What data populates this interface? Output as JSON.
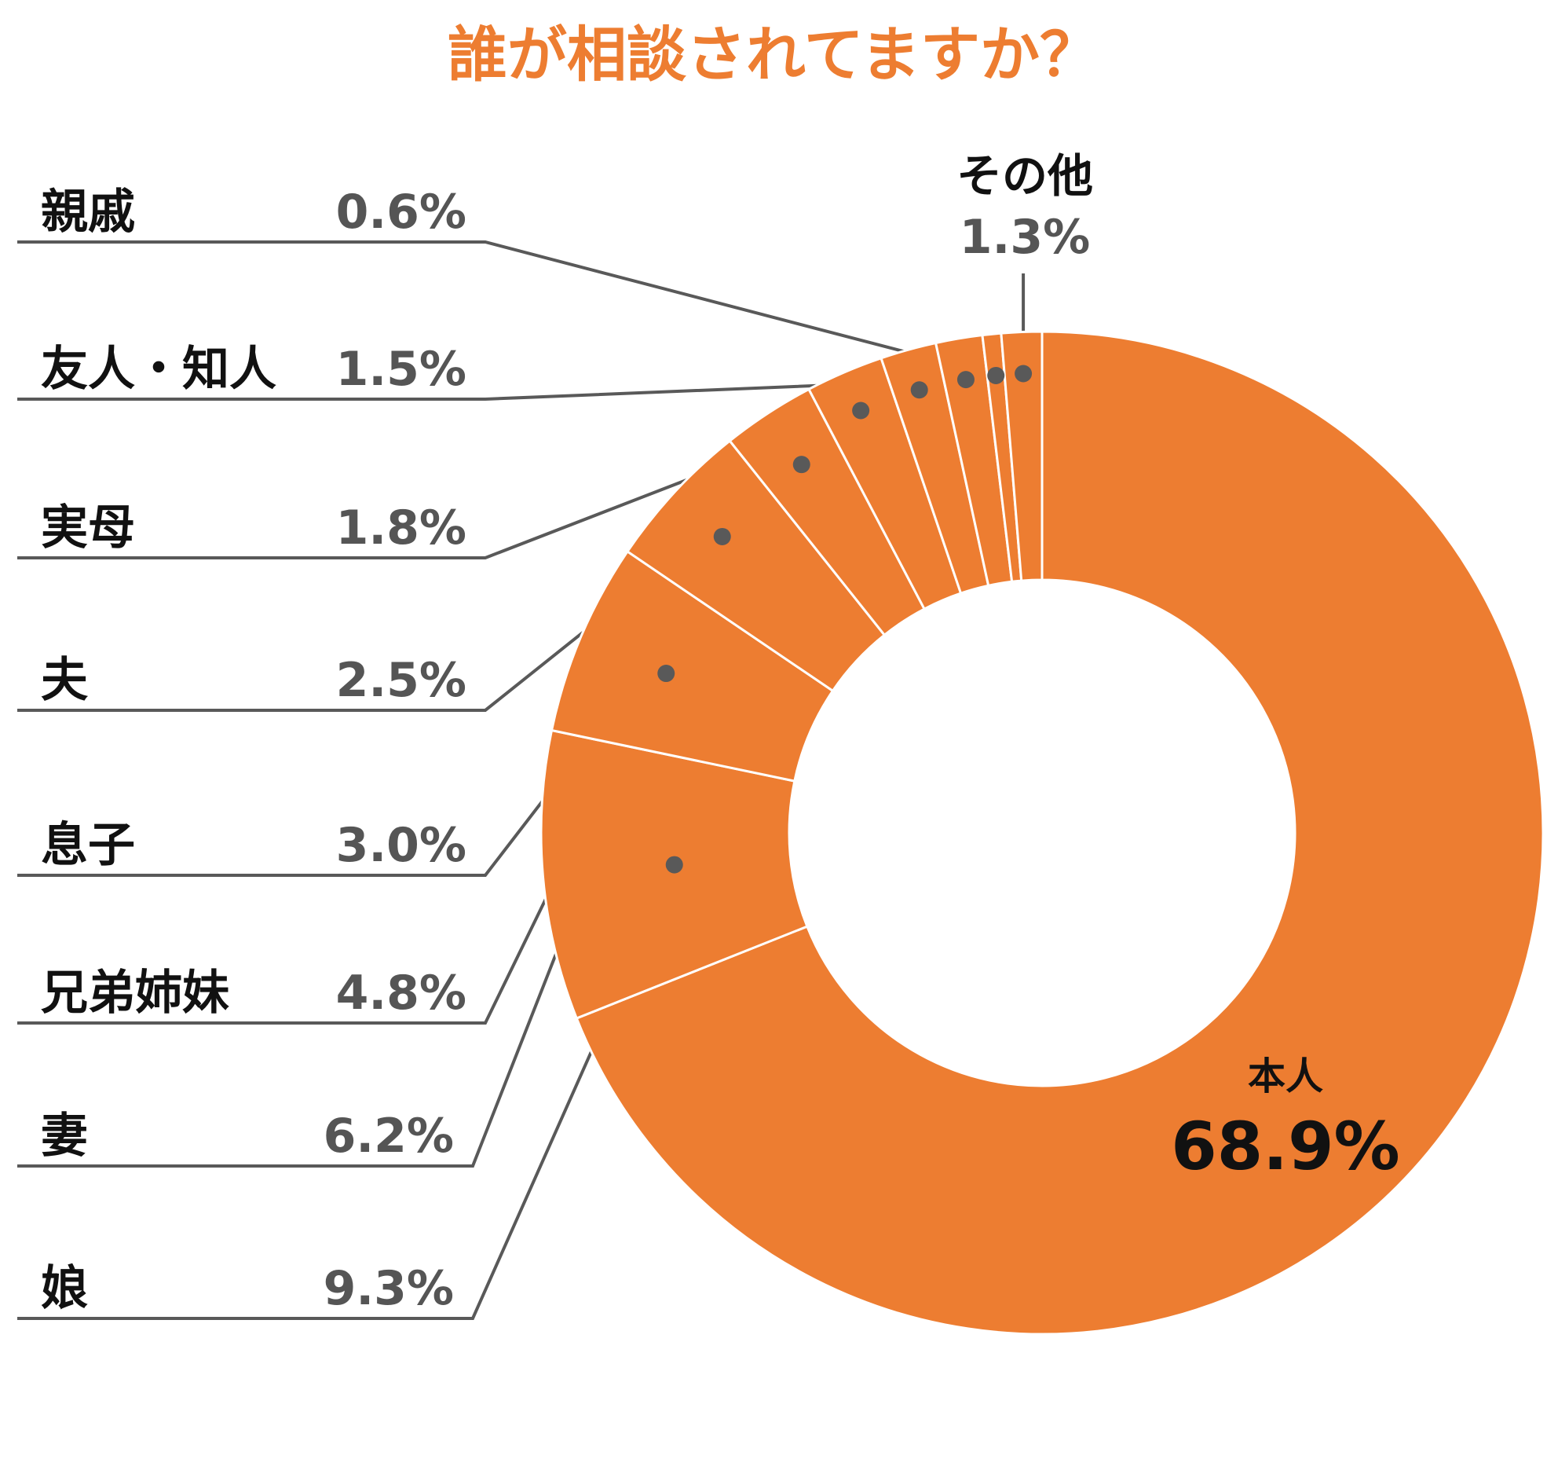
{
  "chart_data": {
    "type": "pie",
    "title": "誰が相談されてますか？",
    "slices": [
      {
        "label": "本人",
        "value": 68.9,
        "value_label": "68.9%"
      },
      {
        "label": "娘",
        "value": 9.3,
        "value_label": "9.3%"
      },
      {
        "label": "妻",
        "value": 6.2,
        "value_label": "6.2%"
      },
      {
        "label": "兄弟姉妹",
        "value": 4.8,
        "value_label": "4.8%"
      },
      {
        "label": "息子",
        "value": 3.0,
        "value_label": "3.0%"
      },
      {
        "label": "夫",
        "value": 2.5,
        "value_label": "2.5%"
      },
      {
        "label": "実母",
        "value": 1.8,
        "value_label": "1.8%"
      },
      {
        "label": "友人・知人",
        "value": 1.5,
        "value_label": "1.5%"
      },
      {
        "label": "親戚",
        "value": 0.6,
        "value_label": "0.6%"
      },
      {
        "label": "その他",
        "value": 1.3,
        "value_label": "1.3%"
      }
    ],
    "legend": "none",
    "grid": false
  },
  "colors": {
    "slice_fill": "#ED7D31",
    "slice_border": "#ffffff",
    "title": "#ED7D31",
    "leader_line": "#595959",
    "category_text": "#111111",
    "percent_text": "#555555"
  }
}
